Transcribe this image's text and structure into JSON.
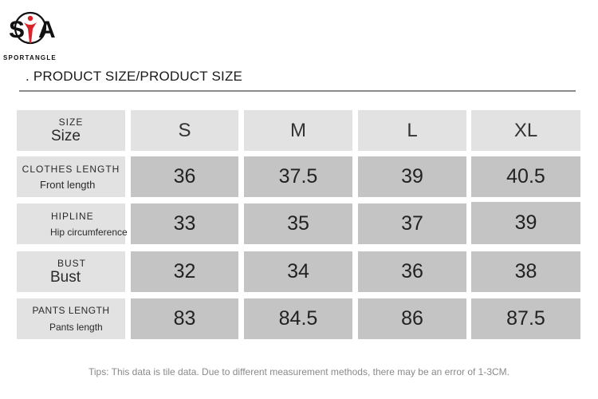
{
  "brand": {
    "name": "SPORTANGLE",
    "letter_left": "S",
    "letter_right": "A",
    "accent_color": "#d8232a"
  },
  "title": ". PRODUCT SIZE/PRODUCT SIZE",
  "table": {
    "header": {
      "label_top": "SIZE",
      "label_bottom": "Size",
      "sizes": [
        "S",
        "M",
        "L",
        "XL"
      ]
    },
    "rows": [
      {
        "label_top": "CLOTHES LENGTH",
        "label_bottom": "Front length",
        "values": [
          "36",
          "37.5",
          "39",
          "40.5"
        ]
      },
      {
        "label_top": "HIPLINE",
        "label_bottom": "Hip circumference",
        "values": [
          "33",
          "35",
          "37",
          "39"
        ]
      },
      {
        "label_top": "BUST",
        "label_bottom": "Bust",
        "values": [
          "32",
          "34",
          "36",
          "38"
        ]
      },
      {
        "label_top": "PANTS LENGTH",
        "label_bottom": "Pants length",
        "values": [
          "83",
          "84.5",
          "86",
          "87.5"
        ]
      }
    ]
  },
  "tips": "Tips: This data is tile data. Due to different measurement methods, there may be an error of 1-3CM."
}
